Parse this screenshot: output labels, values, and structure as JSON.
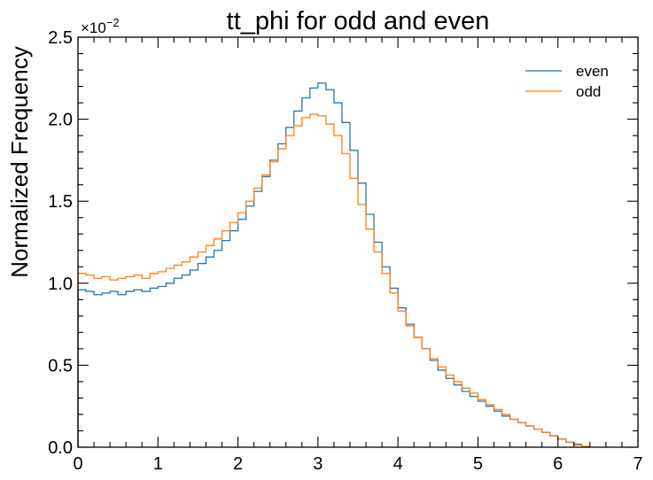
{
  "chart_data": {
    "type": "line",
    "title": "tt_phi for odd and even",
    "xlabel": "",
    "ylabel": "Normalized Frequency",
    "y_offset_base": "×10",
    "y_offset_exp": "−2",
    "xlim": [
      0,
      7
    ],
    "ylim": [
      0,
      2.5
    ],
    "x_ticks": [
      "0",
      "1",
      "2",
      "3",
      "4",
      "5",
      "6",
      "7"
    ],
    "y_ticks": [
      "0.0",
      "0.5",
      "1.0",
      "1.5",
      "2.0",
      "2.5"
    ],
    "grid": false,
    "legend_position": "top-right",
    "colors": {
      "even": "#1f77b4",
      "odd": "#ff7f0e"
    },
    "x": [
      0.0,
      0.1,
      0.2,
      0.3,
      0.4,
      0.5,
      0.6,
      0.7,
      0.8,
      0.9,
      1.0,
      1.1,
      1.2,
      1.3,
      1.4,
      1.5,
      1.6,
      1.7,
      1.8,
      1.9,
      2.0,
      2.1,
      2.2,
      2.3,
      2.4,
      2.5,
      2.6,
      2.7,
      2.8,
      2.9,
      3.0,
      3.1,
      3.2,
      3.3,
      3.4,
      3.5,
      3.6,
      3.7,
      3.8,
      3.9,
      4.0,
      4.1,
      4.2,
      4.3,
      4.4,
      4.5,
      4.6,
      4.7,
      4.8,
      4.9,
      5.0,
      5.1,
      5.2,
      5.3,
      5.4,
      5.5,
      5.6,
      5.7,
      5.8,
      5.9,
      6.0,
      6.1,
      6.2,
      6.3
    ],
    "series": [
      {
        "name": "even",
        "values": [
          0.96,
          0.95,
          0.93,
          0.94,
          0.95,
          0.93,
          0.95,
          0.96,
          0.95,
          0.97,
          0.98,
          1.0,
          1.03,
          1.05,
          1.08,
          1.12,
          1.16,
          1.2,
          1.26,
          1.32,
          1.39,
          1.47,
          1.56,
          1.65,
          1.75,
          1.85,
          1.95,
          2.05,
          2.13,
          2.19,
          2.22,
          2.18,
          2.1,
          1.98,
          1.81,
          1.61,
          1.42,
          1.25,
          1.1,
          0.97,
          0.85,
          0.75,
          0.67,
          0.6,
          0.53,
          0.47,
          0.42,
          0.38,
          0.34,
          0.31,
          0.28,
          0.25,
          0.22,
          0.19,
          0.17,
          0.15,
          0.13,
          0.11,
          0.09,
          0.07,
          0.05,
          0.03,
          0.015,
          0.003
        ]
      },
      {
        "name": "odd",
        "values": [
          1.06,
          1.05,
          1.03,
          1.04,
          1.02,
          1.03,
          1.04,
          1.05,
          1.03,
          1.06,
          1.07,
          1.09,
          1.11,
          1.13,
          1.16,
          1.19,
          1.23,
          1.27,
          1.32,
          1.37,
          1.43,
          1.5,
          1.58,
          1.66,
          1.74,
          1.82,
          1.9,
          1.96,
          2.01,
          2.03,
          2.02,
          1.97,
          1.9,
          1.79,
          1.64,
          1.48,
          1.33,
          1.19,
          1.06,
          0.94,
          0.83,
          0.74,
          0.67,
          0.6,
          0.54,
          0.49,
          0.44,
          0.4,
          0.36,
          0.33,
          0.29,
          0.26,
          0.23,
          0.2,
          0.17,
          0.15,
          0.13,
          0.11,
          0.09,
          0.07,
          0.05,
          0.03,
          0.02,
          0.005
        ]
      }
    ]
  }
}
